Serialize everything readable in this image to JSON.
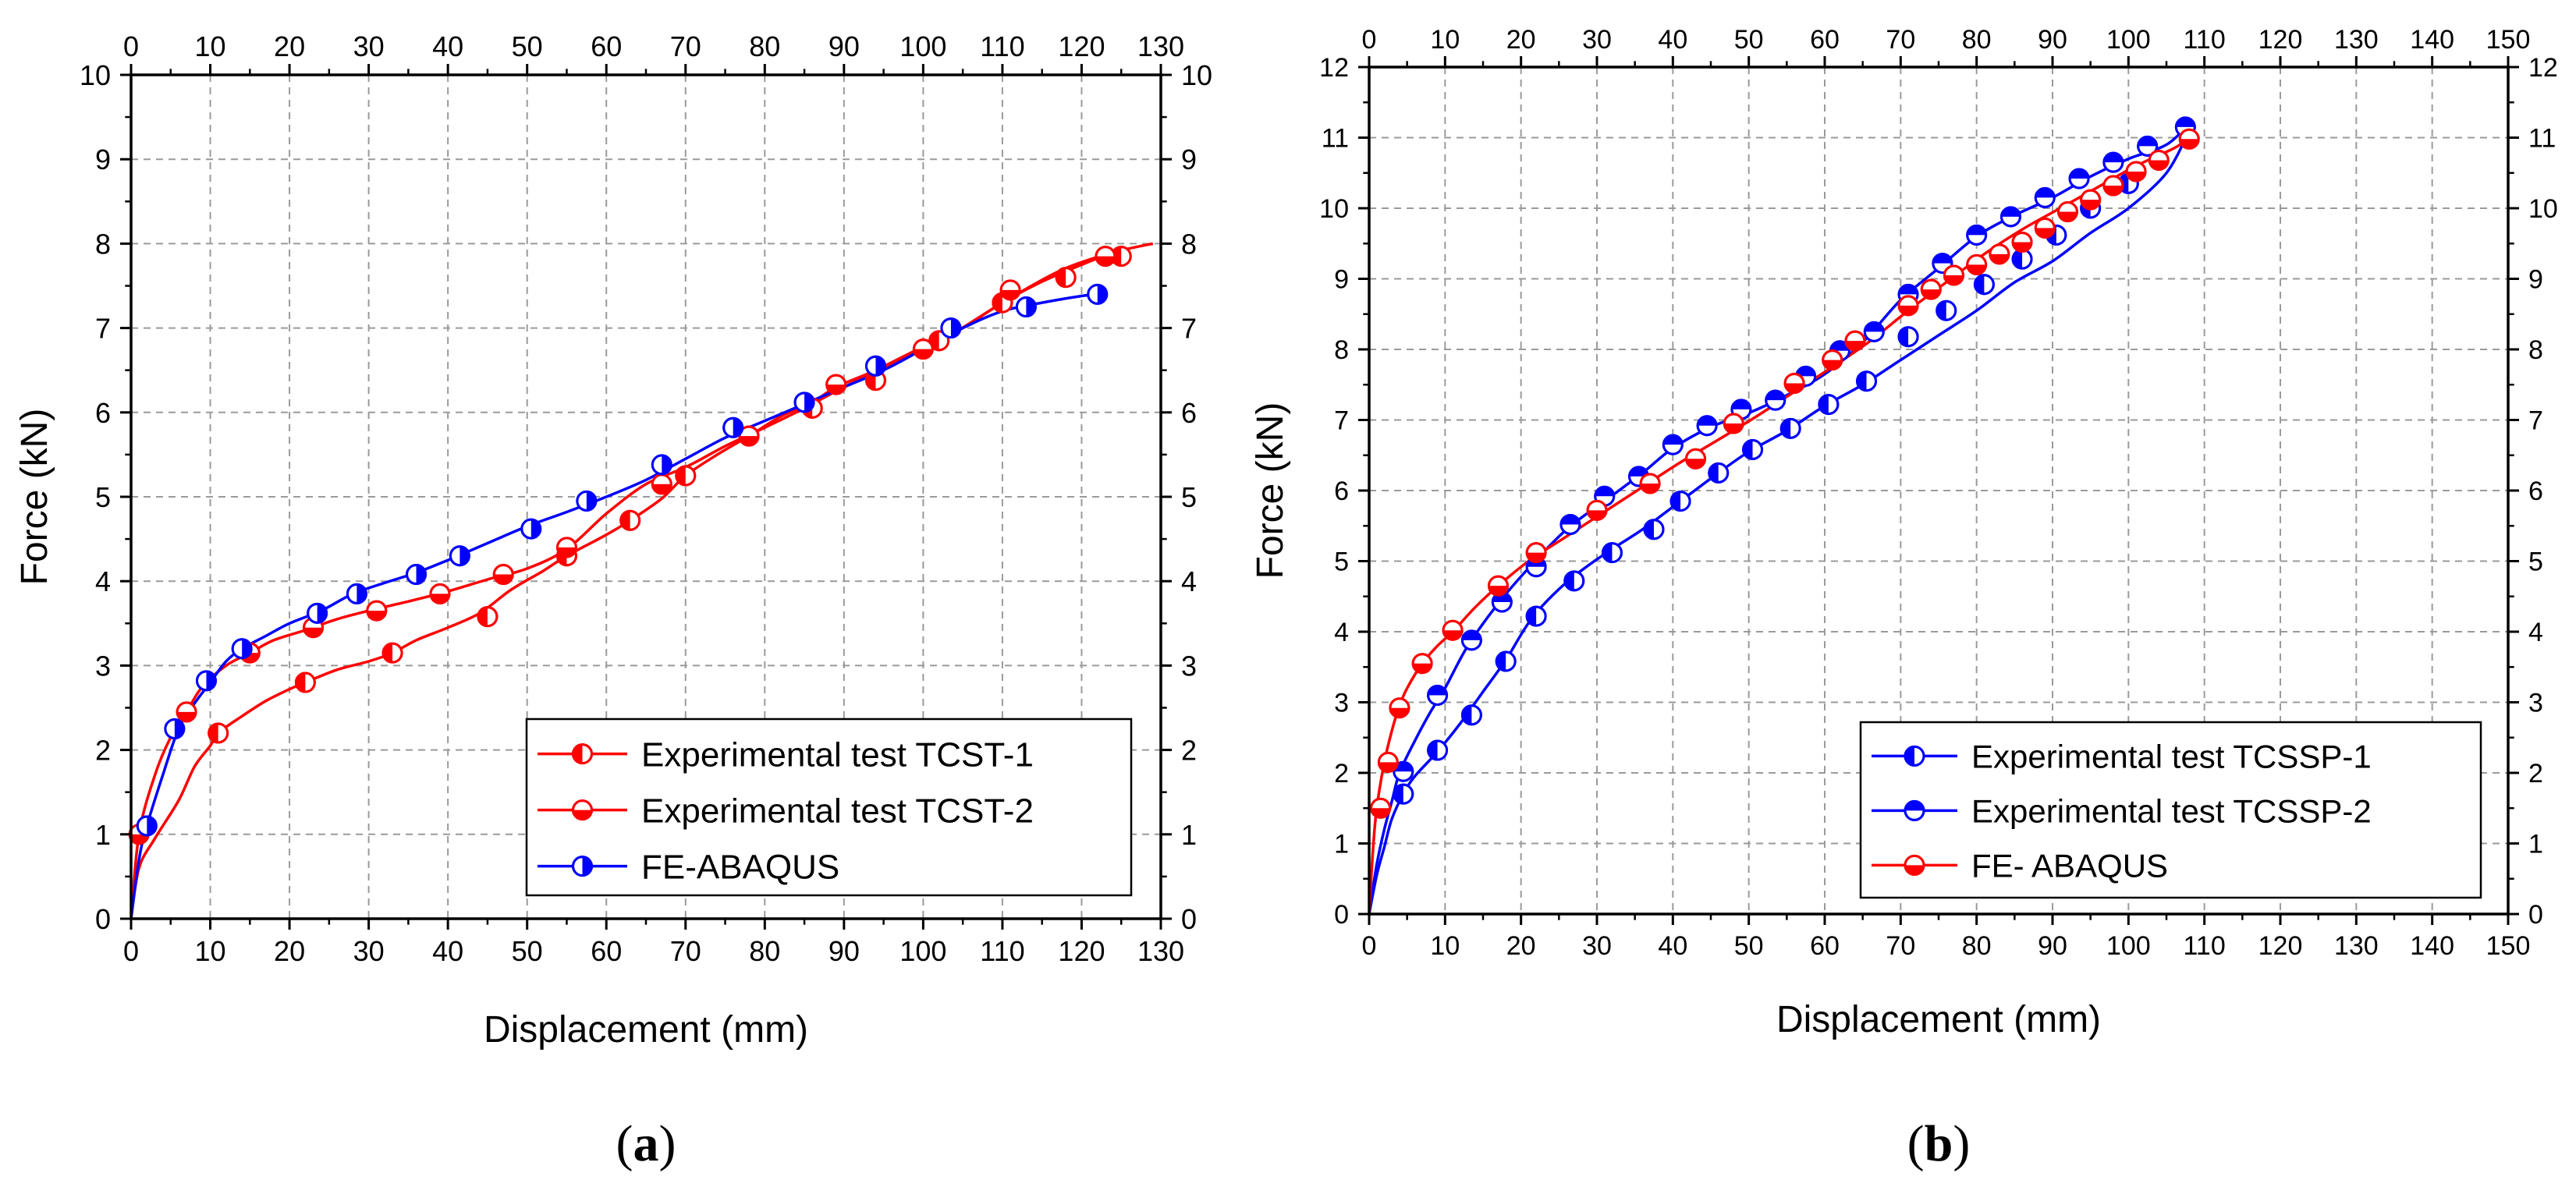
{
  "chart_data": [
    {
      "type": "line",
      "panel_label": "(a)",
      "label_open": "(",
      "label_letter": "a",
      "label_close": ")",
      "xlabel": "Displacement (mm)",
      "ylabel": "Force (kN)",
      "xlim": [
        0,
        130
      ],
      "ylim": [
        0,
        10
      ],
      "xticks": [
        0,
        10,
        20,
        30,
        40,
        50,
        60,
        70,
        80,
        90,
        100,
        110,
        120,
        130
      ],
      "yticks": [
        0,
        1,
        2,
        3,
        4,
        5,
        6,
        7,
        8,
        9,
        10
      ],
      "grid": true,
      "legend_position": "bottom-right",
      "series": [
        {
          "name": "Experimental test TCST-1",
          "color": "#ff0000",
          "marker": "circle-half-left",
          "x": [
            0,
            1,
            3,
            6,
            8,
            10,
            11,
            14,
            17,
            20,
            22,
            26,
            30,
            33,
            36,
            40,
            44,
            48,
            52,
            55,
            60,
            63,
            67,
            70,
            74,
            78,
            82,
            86,
            89,
            94,
            100,
            104,
            110,
            116,
            120,
            125,
            129
          ],
          "y": [
            0,
            0.6,
            0.95,
            1.4,
            1.8,
            2.05,
            2.2,
            2.4,
            2.58,
            2.72,
            2.8,
            2.95,
            3.05,
            3.15,
            3.3,
            3.45,
            3.62,
            3.9,
            4.12,
            4.3,
            4.55,
            4.72,
            4.98,
            5.25,
            5.5,
            5.72,
            5.95,
            6.12,
            6.3,
            6.5,
            6.78,
            6.95,
            7.3,
            7.62,
            7.78,
            7.92,
            8.0
          ],
          "markers_x": [
            11,
            22,
            33,
            45,
            55,
            63,
            70,
            78,
            86,
            94,
            102,
            110,
            118,
            125
          ],
          "markers_y": [
            2.2,
            2.8,
            3.15,
            3.58,
            4.3,
            4.72,
            5.25,
            5.72,
            6.05,
            6.38,
            6.85,
            7.3,
            7.6,
            7.85
          ]
        },
        {
          "name": "Experimental test TCST-2",
          "color": "#ff0000",
          "marker": "circle-half-bottom",
          "x": [
            0,
            1,
            3,
            5,
            7,
            9,
            12,
            15,
            18,
            22,
            26,
            30,
            35,
            40,
            45,
            50,
            55,
            60,
            65,
            70,
            75,
            80,
            85,
            90,
            95,
            100,
            105,
            110,
            115,
            120,
            124
          ],
          "y": [
            0,
            1.0,
            1.7,
            2.15,
            2.45,
            2.75,
            3.0,
            3.15,
            3.3,
            3.42,
            3.55,
            3.65,
            3.76,
            3.88,
            4.02,
            4.15,
            4.38,
            4.8,
            5.15,
            5.35,
            5.6,
            5.82,
            6.05,
            6.3,
            6.52,
            6.75,
            7.0,
            7.3,
            7.55,
            7.75,
            7.9
          ],
          "markers_x": [
            1,
            7,
            15,
            23,
            31,
            39,
            47,
            55,
            67,
            78,
            89,
            100,
            111,
            123
          ],
          "markers_y": [
            1.0,
            2.45,
            3.15,
            3.45,
            3.65,
            3.85,
            4.08,
            4.4,
            5.15,
            5.72,
            6.33,
            6.75,
            7.45,
            7.85
          ]
        },
        {
          "name": "FE-ABAQUS",
          "color": "#0000ff",
          "marker": "circle-half-right",
          "x": [
            0,
            1,
            2,
            4,
            6,
            8,
            10,
            12,
            14,
            17,
            20,
            24,
            28,
            32,
            36,
            40,
            45,
            50,
            55,
            60,
            65,
            70,
            75,
            80,
            85,
            90,
            95,
            100,
            105,
            110,
            115,
            120,
            122
          ],
          "y": [
            0,
            0.7,
            1.1,
            1.7,
            2.25,
            2.55,
            2.8,
            3.05,
            3.2,
            3.35,
            3.5,
            3.65,
            3.85,
            3.98,
            4.1,
            4.25,
            4.45,
            4.65,
            4.82,
            5.0,
            5.2,
            5.45,
            5.7,
            5.9,
            6.1,
            6.3,
            6.5,
            6.75,
            7.0,
            7.2,
            7.3,
            7.38,
            7.4
          ],
          "markers_x": [
            2,
            5.5,
            9.5,
            14,
            23.5,
            28.5,
            36,
            41.5,
            50.5,
            57.5,
            67,
            76,
            85,
            94,
            103.5,
            113,
            122
          ],
          "markers_y": [
            1.1,
            2.25,
            2.82,
            3.2,
            3.62,
            3.85,
            4.08,
            4.3,
            4.62,
            4.95,
            5.38,
            5.82,
            6.12,
            6.55,
            7.0,
            7.25,
            7.4
          ]
        }
      ]
    },
    {
      "type": "line",
      "panel_label": "(b)",
      "label_open": "(",
      "label_letter": "b",
      "label_close": ")",
      "xlabel": "Displacement (mm)",
      "ylabel": "Force (kN)",
      "xlim": [
        0,
        150
      ],
      "ylim": [
        0,
        12
      ],
      "xticks": [
        0,
        10,
        20,
        30,
        40,
        50,
        60,
        70,
        80,
        90,
        100,
        110,
        120,
        130,
        140,
        150
      ],
      "yticks": [
        0,
        1,
        2,
        3,
        4,
        5,
        6,
        7,
        8,
        9,
        10,
        11,
        12
      ],
      "grid": true,
      "legend_position": "bottom-right",
      "series": [
        {
          "name": "Experimental test TCSSP-1",
          "color": "#0000ff",
          "marker": "circle-half-left",
          "x": [
            0,
            1,
            2,
            3,
            4.5,
            6,
            9,
            12,
            15,
            18,
            21.5,
            26,
            31,
            36,
            41,
            46,
            50,
            55,
            60,
            65,
            70,
            75,
            80,
            85,
            90,
            95,
            100,
            105,
            108
          ],
          "y": [
            0,
            0.55,
            0.95,
            1.35,
            1.7,
            1.95,
            2.3,
            2.7,
            3.15,
            3.6,
            4.2,
            4.7,
            5.1,
            5.45,
            5.85,
            6.25,
            6.55,
            6.85,
            7.2,
            7.5,
            7.85,
            8.2,
            8.55,
            8.95,
            9.25,
            9.65,
            10.0,
            10.5,
            11.1
          ],
          "markers_x": [
            4.5,
            9,
            13.5,
            18,
            22,
            27,
            32,
            37.5,
            41,
            46,
            50.5,
            55.5,
            60.5,
            65.5,
            71,
            76,
            81,
            86,
            90.5,
            95,
            100
          ],
          "markers_y": [
            1.7,
            2.32,
            2.82,
            3.58,
            4.22,
            4.72,
            5.12,
            5.45,
            5.85,
            6.25,
            6.58,
            6.88,
            7.22,
            7.55,
            8.18,
            8.55,
            8.92,
            9.28,
            9.62,
            10.0,
            10.35
          ]
        },
        {
          "name": "Experimental test TCSSP-2",
          "color": "#0000ff",
          "marker": "circle-half-top",
          "x": [
            0,
            1,
            2,
            3,
            4,
            6,
            8,
            10,
            13,
            17,
            21,
            26,
            31,
            36,
            40,
            45,
            50,
            55,
            60,
            65,
            70,
            75,
            80,
            85,
            90,
            95,
            100,
            105,
            108
          ],
          "y": [
            0,
            0.7,
            1.2,
            1.6,
            2.0,
            2.45,
            2.85,
            3.2,
            3.8,
            4.4,
            4.9,
            5.45,
            5.85,
            6.25,
            6.6,
            6.9,
            7.1,
            7.35,
            7.65,
            8.1,
            8.7,
            9.15,
            9.6,
            9.9,
            10.15,
            10.45,
            10.7,
            10.9,
            11.2
          ],
          "markers_x": [
            4.5,
            9,
            13.5,
            17.5,
            22,
            26.5,
            31,
            35.5,
            40,
            44.5,
            49,
            53.5,
            57.5,
            62,
            66.5,
            71,
            75.5,
            80,
            84.5,
            89,
            93.5,
            98,
            102.5,
            107.5
          ],
          "markers_y": [
            2.02,
            3.1,
            3.88,
            4.42,
            4.92,
            5.52,
            5.92,
            6.2,
            6.65,
            6.92,
            7.15,
            7.28,
            7.62,
            7.98,
            8.25,
            8.78,
            9.22,
            9.62,
            9.88,
            10.15,
            10.42,
            10.65,
            10.88,
            11.15
          ]
        },
        {
          "name": "FE- ABAQUS",
          "color": "#ff0000",
          "marker": "circle-half-bottom",
          "x": [
            0,
            0.5,
            1,
            2,
            3,
            4,
            5,
            7,
            9,
            11,
            14,
            17,
            21,
            26,
            31,
            36,
            41,
            46,
            51,
            56,
            61,
            66,
            71,
            76,
            81,
            86,
            91,
            96,
            101,
            106,
            108
          ],
          "y": [
            0,
            0.9,
            1.5,
            2.15,
            2.6,
            2.95,
            3.2,
            3.55,
            3.8,
            4.0,
            4.35,
            4.65,
            5.0,
            5.35,
            5.7,
            6.05,
            6.4,
            6.72,
            7.05,
            7.4,
            7.75,
            8.12,
            8.55,
            8.95,
            9.35,
            9.7,
            10.0,
            10.3,
            10.6,
            10.85,
            11.0
          ],
          "markers_x": [
            1.5,
            2.5,
            4,
            7,
            11,
            17,
            22,
            30,
            37,
            43,
            48,
            56,
            61,
            64,
            71,
            74,
            77,
            80,
            83,
            86,
            89,
            92,
            95,
            98,
            101,
            104,
            108
          ],
          "markers_y": [
            1.5,
            2.15,
            2.92,
            3.55,
            4.02,
            4.65,
            5.12,
            5.72,
            6.1,
            6.45,
            6.95,
            7.52,
            7.85,
            8.12,
            8.62,
            8.85,
            9.05,
            9.2,
            9.35,
            9.52,
            9.72,
            9.95,
            10.12,
            10.32,
            10.52,
            10.68,
            10.98
          ]
        }
      ]
    }
  ]
}
